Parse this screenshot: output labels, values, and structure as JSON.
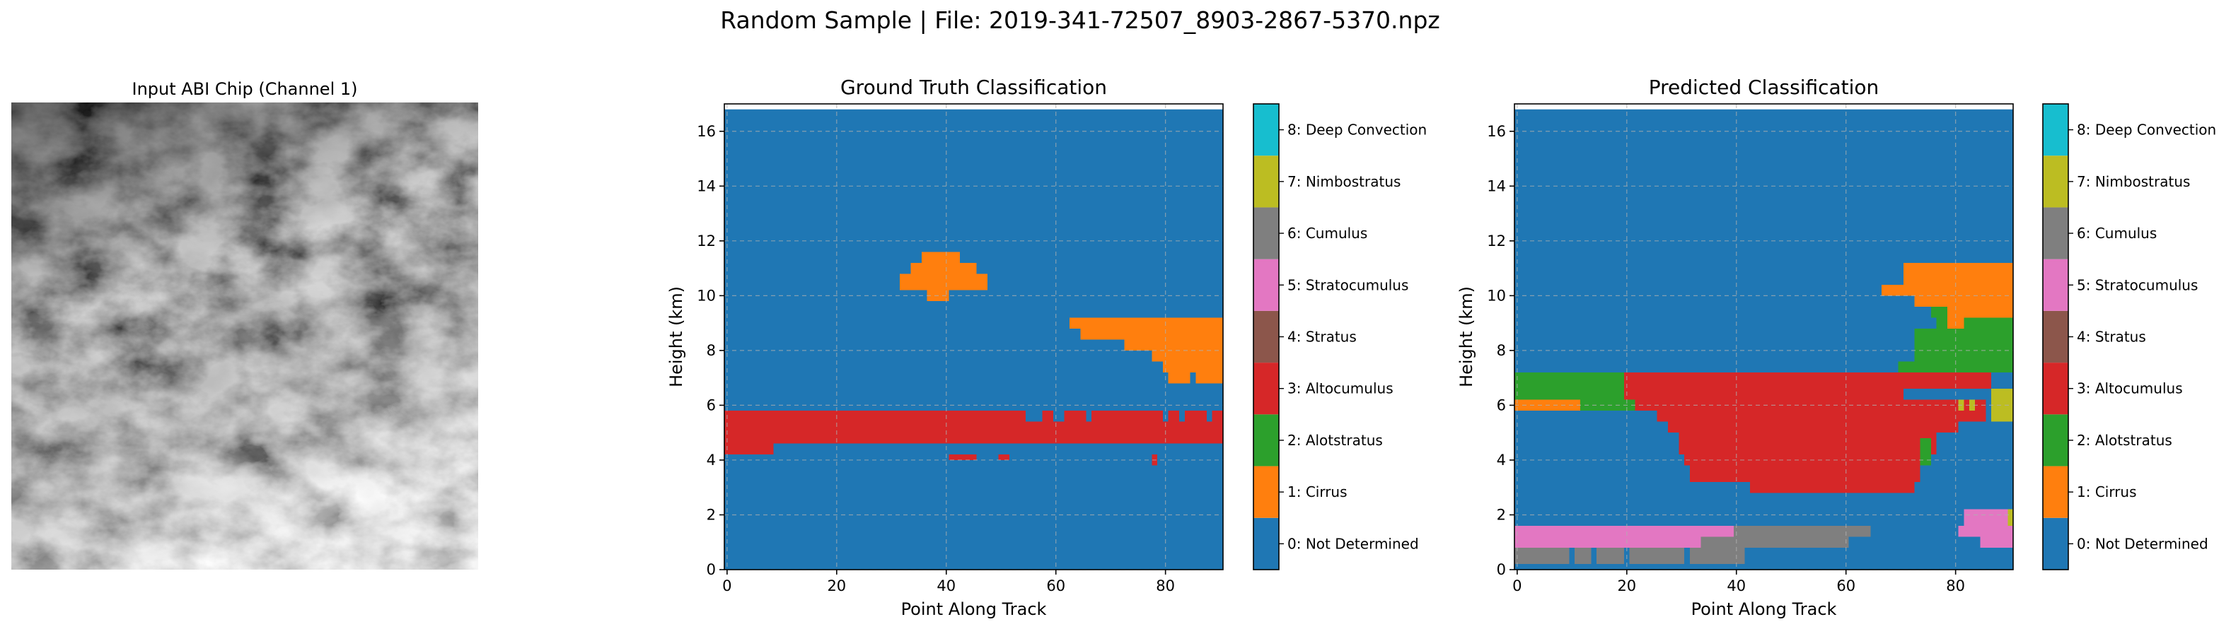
{
  "figure": {
    "suptitle": "Random Sample | File: 2019-341-72507_8903-2867-5370.npz"
  },
  "chart_data": [
    {
      "type": "image",
      "title": "Input ABI Chip (Channel 1)",
      "colormap": "gray",
      "axes_visible": false
    },
    {
      "type": "heatmap",
      "title": "Ground Truth Classification",
      "xlabel": "Point Along Track",
      "ylabel": "Height (km)",
      "xlim": [
        -0.5,
        90.5
      ],
      "ylim": [
        0,
        17
      ],
      "xticks": [
        0,
        20,
        40,
        60,
        80
      ],
      "yticks": [
        0,
        2,
        4,
        6,
        8,
        10,
        12,
        14,
        16
      ],
      "grid": true,
      "default_class": 0,
      "regions": [
        {
          "class": 3,
          "x": [
            -0.5,
            90.5
          ],
          "y": [
            4.2,
            5.8
          ]
        },
        {
          "class": 0,
          "x": [
            8.5,
            90.5
          ],
          "y": [
            4.2,
            4.6
          ]
        },
        {
          "class": 3,
          "x": [
            40.5,
            45.5
          ],
          "y": [
            4.0,
            4.2
          ]
        },
        {
          "class": 3,
          "x": [
            49.5,
            51.5
          ],
          "y": [
            4.0,
            4.2
          ]
        },
        {
          "class": 3,
          "x": [
            77.5,
            78.5
          ],
          "y": [
            3.8,
            4.2
          ]
        },
        {
          "class": 0,
          "x": [
            54.5,
            57.5
          ],
          "y": [
            5.4,
            5.8
          ]
        },
        {
          "class": 0,
          "x": [
            59.5,
            61.5
          ],
          "y": [
            5.4,
            5.8
          ]
        },
        {
          "class": 0,
          "x": [
            65.5,
            66.5
          ],
          "y": [
            5.4,
            5.8
          ]
        },
        {
          "class": 0,
          "x": [
            79.5,
            80.5
          ],
          "y": [
            5.4,
            5.8
          ]
        },
        {
          "class": 0,
          "x": [
            82.5,
            83.5
          ],
          "y": [
            5.4,
            5.8
          ]
        },
        {
          "class": 0,
          "x": [
            87.5,
            88.5
          ],
          "y": [
            5.4,
            5.8
          ]
        },
        {
          "class": 1,
          "x": [
            31.5,
            47.5
          ],
          "y": [
            10.2,
            10.8
          ]
        },
        {
          "class": 1,
          "x": [
            33.5,
            45.5
          ],
          "y": [
            10.8,
            11.2
          ]
        },
        {
          "class": 1,
          "x": [
            35.5,
            42.5
          ],
          "y": [
            11.2,
            11.6
          ]
        },
        {
          "class": 1,
          "x": [
            36.5,
            40.5
          ],
          "y": [
            9.8,
            10.2
          ]
        },
        {
          "class": 1,
          "x": [
            62.5,
            90.5
          ],
          "y": [
            8.8,
            9.2
          ]
        },
        {
          "class": 1,
          "x": [
            64.5,
            90.5
          ],
          "y": [
            8.4,
            8.8
          ]
        },
        {
          "class": 1,
          "x": [
            72.5,
            90.5
          ],
          "y": [
            8.0,
            8.4
          ]
        },
        {
          "class": 1,
          "x": [
            77.5,
            90.5
          ],
          "y": [
            7.6,
            8.0
          ]
        },
        {
          "class": 1,
          "x": [
            79.5,
            90.5
          ],
          "y": [
            7.2,
            7.6
          ]
        },
        {
          "class": 1,
          "x": [
            81.5,
            84.5
          ],
          "y": [
            6.8,
            7.2
          ]
        },
        {
          "class": 1,
          "x": [
            85.5,
            90.5
          ],
          "y": [
            6.8,
            7.2
          ]
        },
        {
          "class": 1,
          "x": [
            80.5,
            81.5
          ],
          "y": [
            6.8,
            7.2
          ]
        }
      ]
    },
    {
      "type": "heatmap",
      "title": "Predicted Classification",
      "xlabel": "Point Along Track",
      "ylabel": "Height (km)",
      "xlim": [
        -0.5,
        90.5
      ],
      "ylim": [
        0,
        17
      ],
      "xticks": [
        0,
        20,
        40,
        60,
        80
      ],
      "yticks": [
        0,
        2,
        4,
        6,
        8,
        10,
        12,
        14,
        16
      ],
      "grid": true,
      "default_class": 0,
      "regions": [
        {
          "class": 2,
          "x": [
            -0.5,
            19.5
          ],
          "y": [
            6.2,
            7.2
          ]
        },
        {
          "class": 1,
          "x": [
            -0.5,
            11.5
          ],
          "y": [
            5.8,
            6.2
          ]
        },
        {
          "class": 2,
          "x": [
            11.5,
            21.5
          ],
          "y": [
            5.8,
            6.2
          ]
        },
        {
          "class": 3,
          "x": [
            19.5,
            70.5
          ],
          "y": [
            6.2,
            7.2
          ]
        },
        {
          "class": 3,
          "x": [
            21.5,
            85.5
          ],
          "y": [
            5.8,
            6.2
          ]
        },
        {
          "class": 3,
          "x": [
            25.5,
            85.5
          ],
          "y": [
            5.4,
            5.8
          ]
        },
        {
          "class": 3,
          "x": [
            27.5,
            80.5
          ],
          "y": [
            5.0,
            5.4
          ]
        },
        {
          "class": 3,
          "x": [
            29.5,
            76.5
          ],
          "y": [
            4.2,
            5.0
          ]
        },
        {
          "class": 3,
          "x": [
            30.5,
            73.5
          ],
          "y": [
            3.8,
            4.2
          ]
        },
        {
          "class": 3,
          "x": [
            31.5,
            73.5
          ],
          "y": [
            3.2,
            3.8
          ]
        },
        {
          "class": 3,
          "x": [
            42.5,
            72.5
          ],
          "y": [
            2.8,
            3.2
          ]
        },
        {
          "class": 2,
          "x": [
            73.5,
            75.5
          ],
          "y": [
            3.8,
            4.8
          ]
        },
        {
          "class": 2,
          "x": [
            69.5,
            90.5
          ],
          "y": [
            7.2,
            7.6
          ]
        },
        {
          "class": 2,
          "x": [
            72.5,
            90.5
          ],
          "y": [
            7.6,
            8.8
          ]
        },
        {
          "class": 2,
          "x": [
            76.5,
            90.5
          ],
          "y": [
            8.8,
            9.2
          ]
        },
        {
          "class": 3,
          "x": [
            70.5,
            86.5
          ],
          "y": [
            6.6,
            7.2
          ]
        },
        {
          "class": 7,
          "x": [
            86.5,
            90.5
          ],
          "y": [
            5.4,
            6.6
          ]
        },
        {
          "class": 7,
          "x": [
            80.5,
            81.5
          ],
          "y": [
            5.8,
            6.2
          ]
        },
        {
          "class": 7,
          "x": [
            82.5,
            83.5
          ],
          "y": [
            5.8,
            6.2
          ]
        },
        {
          "class": 1,
          "x": [
            70.5,
            90.5
          ],
          "y": [
            10.4,
            11.2
          ]
        },
        {
          "class": 1,
          "x": [
            66.5,
            90.5
          ],
          "y": [
            10.0,
            10.4
          ]
        },
        {
          "class": 1,
          "x": [
            72.5,
            90.5
          ],
          "y": [
            9.6,
            10.0
          ]
        },
        {
          "class": 1,
          "x": [
            78.5,
            90.5
          ],
          "y": [
            9.2,
            9.6
          ]
        },
        {
          "class": 1,
          "x": [
            78.5,
            81.5
          ],
          "y": [
            8.8,
            9.2
          ]
        },
        {
          "class": 2,
          "x": [
            75.5,
            78.5
          ],
          "y": [
            9.2,
            9.6
          ]
        },
        {
          "class": 5,
          "x": [
            -0.5,
            39.5
          ],
          "y": [
            0.8,
            1.6
          ]
        },
        {
          "class": 6,
          "x": [
            39.5,
            64.5
          ],
          "y": [
            1.2,
            1.6
          ]
        },
        {
          "class": 6,
          "x": [
            33.5,
            60.5
          ],
          "y": [
            0.8,
            1.2
          ]
        },
        {
          "class": 6,
          "x": [
            -0.5,
            41.5
          ],
          "y": [
            0.2,
            0.8
          ]
        },
        {
          "class": 0,
          "x": [
            9.5,
            10.5
          ],
          "y": [
            0.2,
            0.8
          ]
        },
        {
          "class": 0,
          "x": [
            13.5,
            14.5
          ],
          "y": [
            0.2,
            0.8
          ]
        },
        {
          "class": 0,
          "x": [
            19.5,
            20.5
          ],
          "y": [
            0.2,
            0.8
          ]
        },
        {
          "class": 0,
          "x": [
            30.5,
            31.5
          ],
          "y": [
            0.2,
            0.8
          ]
        },
        {
          "class": 5,
          "x": [
            81.5,
            89.5
          ],
          "y": [
            1.6,
            2.2
          ]
        },
        {
          "class": 5,
          "x": [
            80.5,
            90.5
          ],
          "y": [
            1.2,
            1.6
          ]
        },
        {
          "class": 5,
          "x": [
            84.5,
            90.5
          ],
          "y": [
            0.8,
            1.2
          ]
        },
        {
          "class": 7,
          "x": [
            89.5,
            90.5
          ],
          "y": [
            1.6,
            2.2
          ]
        }
      ]
    }
  ],
  "colorbar": {
    "classes": [
      {
        "label": "0: Not Determined",
        "color": "#1f77b4"
      },
      {
        "label": "1: Cirrus",
        "color": "#ff7f0e"
      },
      {
        "label": "2: Alotstratus",
        "color": "#2ca02c"
      },
      {
        "label": "3: Altocumulus",
        "color": "#d62728"
      },
      {
        "label": "4: Stratus",
        "color": "#8c564b"
      },
      {
        "label": "5: Stratocumulus",
        "color": "#e377c2"
      },
      {
        "label": "6: Cumulus",
        "color": "#7f7f7f"
      },
      {
        "label": "7: Nimbostratus",
        "color": "#bcbd22"
      },
      {
        "label": "8: Deep Convection",
        "color": "#17becf"
      }
    ]
  }
}
